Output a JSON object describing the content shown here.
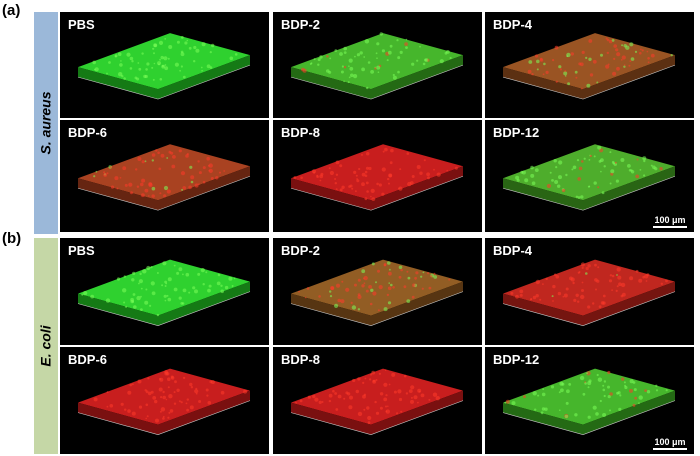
{
  "panels": [
    {
      "label": "(a)",
      "organism": "S. aureus",
      "side_color": "#9bb8d9",
      "scale_label": "100 μm",
      "tiles": [
        {
          "label": "PBS",
          "green": 1.0
        },
        {
          "label": "BDP-2",
          "green": 0.85
        },
        {
          "label": "BDP-4",
          "green": 0.3
        },
        {
          "label": "BDP-6",
          "green": 0.2
        },
        {
          "label": "BDP-8",
          "green": 0.0
        },
        {
          "label": "BDP-12",
          "green": 0.8
        }
      ]
    },
    {
      "label": "(b)",
      "organism": "E. coli",
      "side_color": "#c5d7a6",
      "scale_label": "100 μm",
      "tiles": [
        {
          "label": "PBS",
          "green": 1.0
        },
        {
          "label": "BDP-2",
          "green": 0.35
        },
        {
          "label": "BDP-4",
          "green": 0.05
        },
        {
          "label": "BDP-6",
          "green": 0.0
        },
        {
          "label": "BDP-8",
          "green": 0.0
        },
        {
          "label": "BDP-12",
          "green": 0.85
        }
      ]
    }
  ],
  "colors": {
    "live": "#2fd12f",
    "dead": "#c81e1e"
  }
}
